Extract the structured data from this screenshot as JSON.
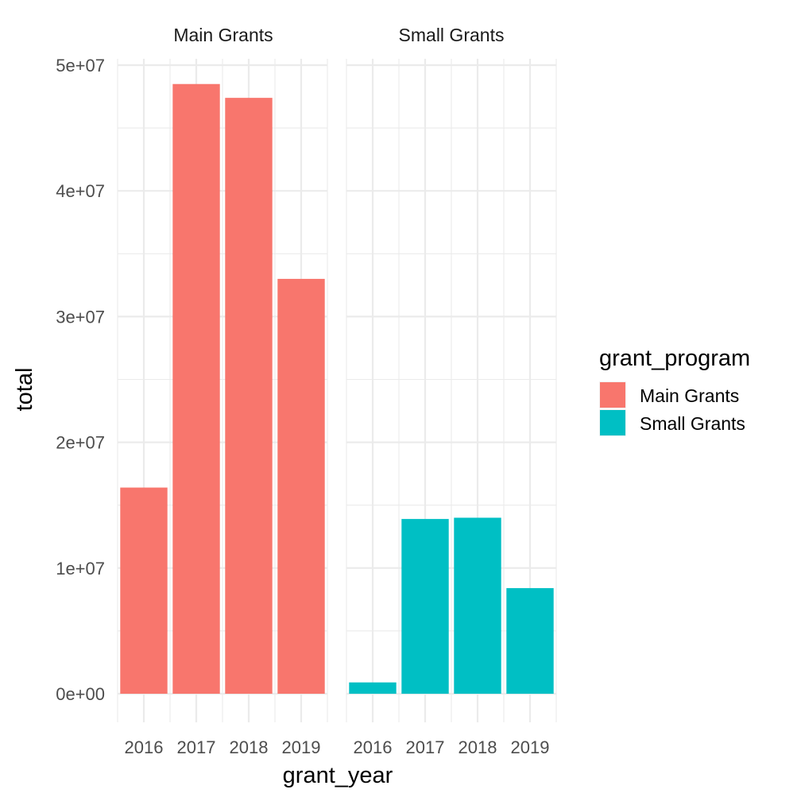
{
  "chart_data": {
    "type": "bar",
    "facet_by": "grant_program",
    "xlabel": "grant_year",
    "ylabel": "total",
    "ylim": [
      0,
      50000000
    ],
    "y_ticks": [
      "0e+00",
      "1e+07",
      "2e+07",
      "3e+07",
      "4e+07",
      "5e+07"
    ],
    "y_tick_values": [
      0,
      10000000,
      20000000,
      30000000,
      40000000,
      50000000
    ],
    "categories": [
      "2016",
      "2017",
      "2018",
      "2019"
    ],
    "grid": true,
    "legend": {
      "title": "grant_program",
      "position": "right",
      "items": [
        {
          "label": "Main Grants",
          "color": "#F8766D"
        },
        {
          "label": "Small Grants",
          "color": "#00BFC4"
        }
      ]
    },
    "panels": [
      {
        "strip": "Main Grants",
        "color": "#F8766D",
        "values": [
          16400000,
          48500000,
          47400000,
          33000000
        ]
      },
      {
        "strip": "Small Grants",
        "color": "#00BFC4",
        "values": [
          900000,
          13900000,
          14000000,
          8400000
        ]
      }
    ]
  }
}
